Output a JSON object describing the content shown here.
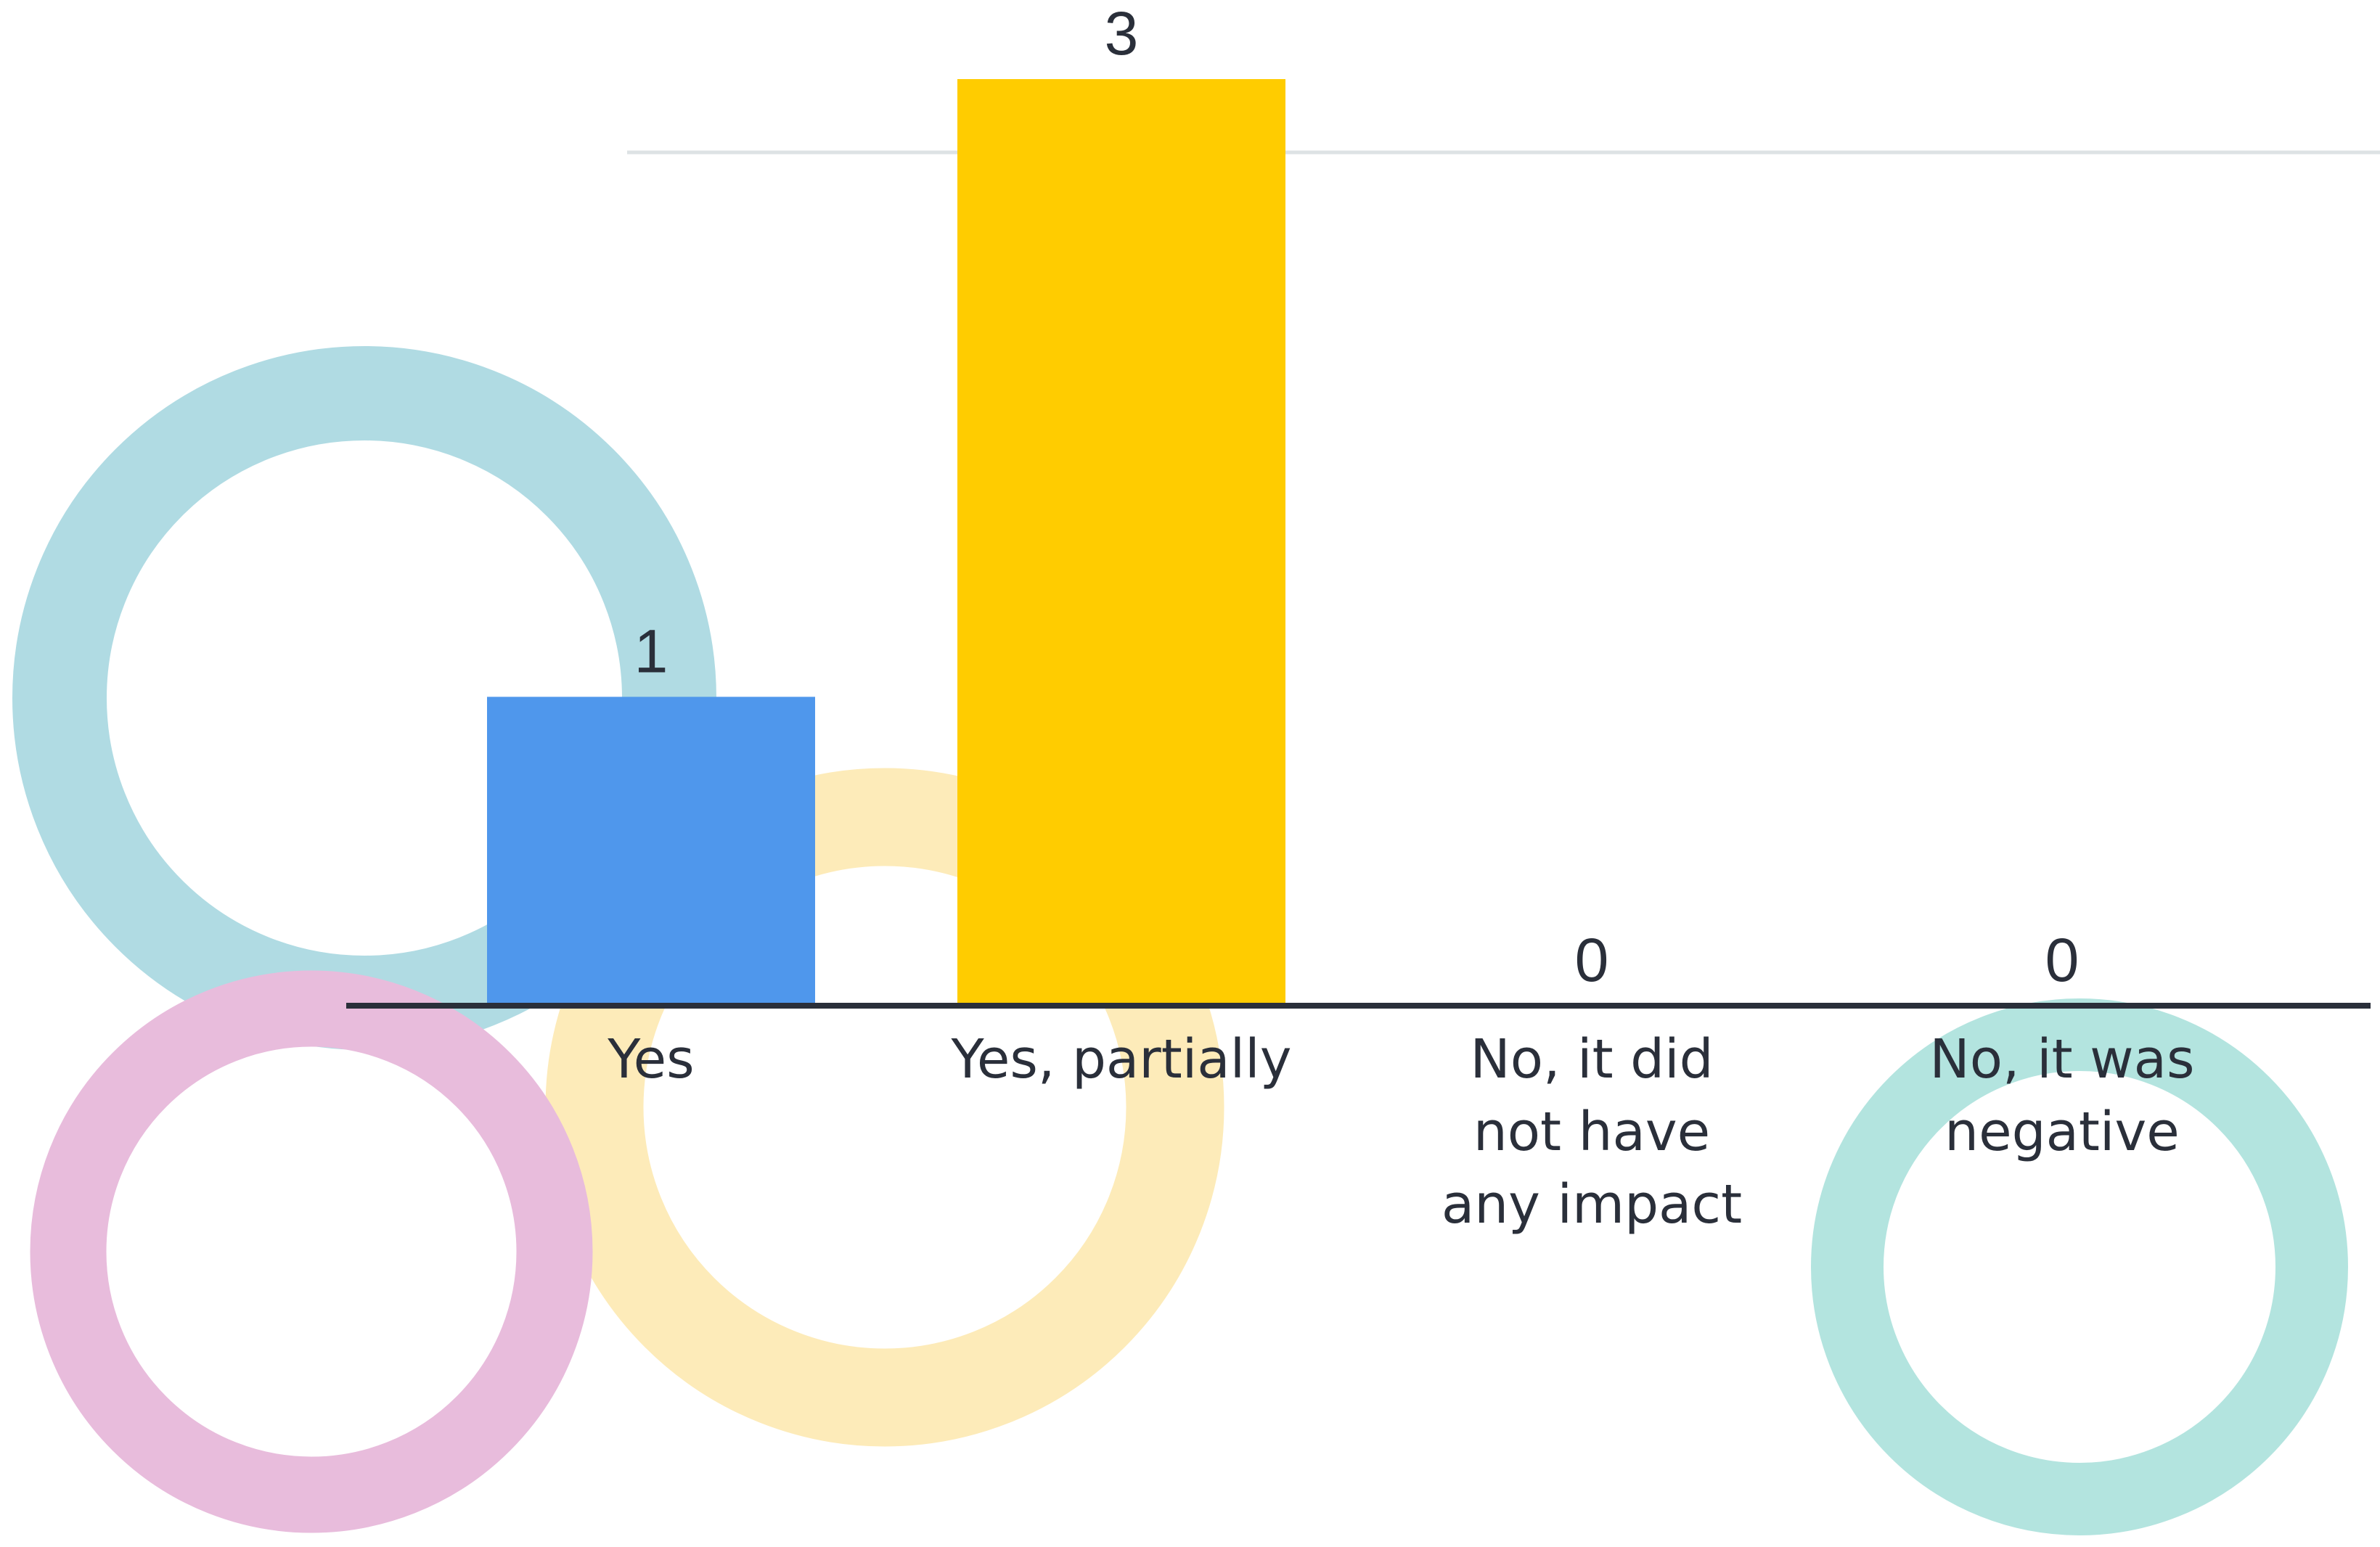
{
  "chart_data": {
    "type": "bar",
    "categories": [
      "Yes",
      "Yes, partially",
      "No, it did not have any impact",
      "No, it was negative"
    ],
    "values": [
      1,
      3,
      0,
      0
    ],
    "colors": [
      "#4f97ec",
      "#ffcc00"
    ],
    "ylim": [
      0,
      3
    ]
  }
}
